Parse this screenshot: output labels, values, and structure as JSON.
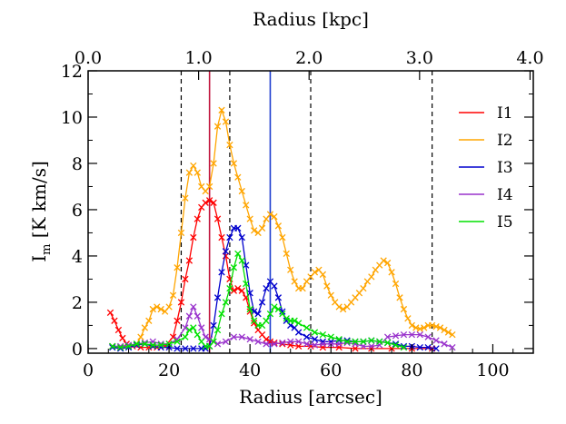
{
  "chart_data": {
    "type": "line",
    "xlabel": "Radius [arcsec]",
    "ylabel": "I",
    "ylabel_sub": "m",
    "ylabel_units": " [K km/s]",
    "top_axis_label": "Radius [kpc]",
    "xlim": [
      0,
      110
    ],
    "ylim": [
      -0.2,
      12
    ],
    "x_ticks": [
      0,
      20,
      40,
      60,
      80,
      100
    ],
    "y_ticks": [
      0,
      2,
      4,
      6,
      8,
      10,
      12
    ],
    "top_ticks": [
      {
        "label": "0.0",
        "x": 0
      },
      {
        "label": "1.0",
        "x": 27.3
      },
      {
        "label": "2.0",
        "x": 54.6
      },
      {
        "label": "3.0",
        "x": 81.9
      },
      {
        "label": "4.0",
        "x": 109.2
      }
    ],
    "dashed_lines_x": [
      23,
      35,
      55,
      85
    ],
    "solid_vlines": [
      {
        "x": 30,
        "color": "#c0143c"
      },
      {
        "x": 45,
        "color": "#1f3fd0"
      }
    ],
    "grid": false,
    "legend_position": "top-right",
    "series": [
      {
        "name": "I1",
        "color": "#ff0000",
        "points": [
          [
            5.5,
            1.55
          ],
          [
            6.5,
            1.2
          ],
          [
            7.5,
            0.8
          ],
          [
            8.5,
            0.45
          ],
          [
            9.5,
            0.2
          ],
          [
            11,
            0.1
          ],
          [
            13,
            0.05
          ],
          [
            15,
            0.05
          ],
          [
            17,
            0.05
          ],
          [
            19,
            0.1
          ],
          [
            21,
            0.5
          ],
          [
            22,
            1.2
          ],
          [
            23,
            2.0
          ],
          [
            24,
            3.0
          ],
          [
            25,
            3.8
          ],
          [
            26,
            4.8
          ],
          [
            27,
            5.6
          ],
          [
            28,
            6.1
          ],
          [
            29,
            6.3
          ],
          [
            30,
            6.4
          ],
          [
            31,
            6.3
          ],
          [
            32,
            5.6
          ],
          [
            33,
            4.8
          ],
          [
            34,
            4.0
          ],
          [
            35,
            3.0
          ],
          [
            36,
            2.5
          ],
          [
            37,
            2.6
          ],
          [
            38,
            2.5
          ],
          [
            39,
            2.2
          ],
          [
            40,
            1.6
          ],
          [
            41,
            1.1
          ],
          [
            42,
            0.8
          ],
          [
            43,
            0.6
          ],
          [
            44,
            0.4
          ],
          [
            45,
            0.3
          ],
          [
            46,
            0.25
          ],
          [
            48,
            0.2
          ],
          [
            50,
            0.15
          ],
          [
            52,
            0.1
          ],
          [
            55,
            0.1
          ],
          [
            58,
            0.05
          ],
          [
            62,
            0.05
          ],
          [
            66,
            0.0
          ],
          [
            70,
            0.0
          ],
          [
            75,
            0.0
          ],
          [
            80,
            0.0
          ],
          [
            85,
            0.0
          ]
        ]
      },
      {
        "name": "I2",
        "color": "#ffa500",
        "points": [
          [
            6,
            0.1
          ],
          [
            8,
            0.05
          ],
          [
            10,
            0.1
          ],
          [
            12,
            0.2
          ],
          [
            13,
            0.5
          ],
          [
            14,
            0.9
          ],
          [
            15,
            1.2
          ],
          [
            16,
            1.7
          ],
          [
            17,
            1.8
          ],
          [
            18,
            1.7
          ],
          [
            19,
            1.6
          ],
          [
            20,
            1.8
          ],
          [
            21,
            2.3
          ],
          [
            22,
            3.5
          ],
          [
            23,
            5.0
          ],
          [
            24,
            6.5
          ],
          [
            25,
            7.6
          ],
          [
            26,
            7.9
          ],
          [
            27,
            7.6
          ],
          [
            28,
            7.0
          ],
          [
            29,
            6.8
          ],
          [
            30,
            7.0
          ],
          [
            31,
            8.0
          ],
          [
            32,
            9.6
          ],
          [
            33,
            10.3
          ],
          [
            34,
            9.8
          ],
          [
            35,
            8.8
          ],
          [
            36,
            8.0
          ],
          [
            37,
            7.4
          ],
          [
            38,
            6.8
          ],
          [
            39,
            6.2
          ],
          [
            40,
            5.6
          ],
          [
            41,
            5.1
          ],
          [
            42,
            5.0
          ],
          [
            43,
            5.2
          ],
          [
            44,
            5.6
          ],
          [
            45,
            5.8
          ],
          [
            46,
            5.7
          ],
          [
            47,
            5.3
          ],
          [
            48,
            4.8
          ],
          [
            49,
            4.1
          ],
          [
            50,
            3.4
          ],
          [
            51,
            2.9
          ],
          [
            52,
            2.6
          ],
          [
            53,
            2.6
          ],
          [
            54,
            2.9
          ],
          [
            55,
            3.1
          ],
          [
            56,
            3.3
          ],
          [
            57,
            3.4
          ],
          [
            58,
            3.2
          ],
          [
            59,
            2.7
          ],
          [
            60,
            2.3
          ],
          [
            61,
            2.0
          ],
          [
            62,
            1.8
          ],
          [
            63,
            1.7
          ],
          [
            64,
            1.8
          ],
          [
            65,
            2.0
          ],
          [
            66,
            2.2
          ],
          [
            67,
            2.4
          ],
          [
            68,
            2.6
          ],
          [
            69,
            2.9
          ],
          [
            70,
            3.1
          ],
          [
            71,
            3.4
          ],
          [
            72,
            3.6
          ],
          [
            73,
            3.8
          ],
          [
            74,
            3.7
          ],
          [
            75,
            3.3
          ],
          [
            76,
            2.8
          ],
          [
            77,
            2.2
          ],
          [
            78,
            1.7
          ],
          [
            79,
            1.3
          ],
          [
            80,
            1.0
          ],
          [
            81,
            0.9
          ],
          [
            82,
            0.85
          ],
          [
            83,
            0.9
          ],
          [
            84,
            1.0
          ],
          [
            85,
            1.0
          ],
          [
            86,
            0.95
          ],
          [
            87,
            0.9
          ],
          [
            88,
            0.8
          ],
          [
            89,
            0.7
          ],
          [
            90,
            0.6
          ]
        ]
      },
      {
        "name": "I3",
        "color": "#0000cd",
        "points": [
          [
            6,
            0.05
          ],
          [
            8,
            0.0
          ],
          [
            10,
            0.05
          ],
          [
            12,
            0.15
          ],
          [
            14,
            0.2
          ],
          [
            16,
            0.1
          ],
          [
            18,
            0.05
          ],
          [
            20,
            0.05
          ],
          [
            22,
            0.0
          ],
          [
            24,
            0.0
          ],
          [
            26,
            0.0
          ],
          [
            28,
            0.0
          ],
          [
            29,
            0.0
          ],
          [
            30,
            0.1
          ],
          [
            31,
            1.0
          ],
          [
            32,
            2.2
          ],
          [
            33,
            3.3
          ],
          [
            34,
            4.2
          ],
          [
            35,
            4.8
          ],
          [
            36,
            5.2
          ],
          [
            37,
            5.2
          ],
          [
            38,
            4.8
          ],
          [
            39,
            3.6
          ],
          [
            40,
            2.4
          ],
          [
            41,
            1.6
          ],
          [
            42,
            1.5
          ],
          [
            43,
            2.0
          ],
          [
            44,
            2.6
          ],
          [
            45,
            2.9
          ],
          [
            46,
            2.7
          ],
          [
            47,
            2.2
          ],
          [
            48,
            1.6
          ],
          [
            49,
            1.2
          ],
          [
            50,
            1.0
          ],
          [
            51,
            0.9
          ],
          [
            52,
            0.7
          ],
          [
            54,
            0.5
          ],
          [
            56,
            0.4
          ],
          [
            58,
            0.3
          ],
          [
            60,
            0.3
          ],
          [
            62,
            0.35
          ],
          [
            64,
            0.35
          ],
          [
            66,
            0.3
          ],
          [
            68,
            0.3
          ],
          [
            70,
            0.35
          ],
          [
            72,
            0.3
          ],
          [
            74,
            0.25
          ],
          [
            76,
            0.2
          ],
          [
            78,
            0.1
          ],
          [
            80,
            0.1
          ],
          [
            82,
            0.05
          ],
          [
            84,
            0.05
          ],
          [
            86,
            0.0
          ]
        ]
      },
      {
        "name": "I4",
        "color": "#9932cc",
        "points": [
          [
            6,
            0.1
          ],
          [
            8,
            0.1
          ],
          [
            10,
            0.15
          ],
          [
            12,
            0.2
          ],
          [
            14,
            0.25
          ],
          [
            16,
            0.3
          ],
          [
            18,
            0.2
          ],
          [
            20,
            0.2
          ],
          [
            22,
            0.4
          ],
          [
            24,
            0.9
          ],
          [
            25,
            1.4
          ],
          [
            26,
            1.8
          ],
          [
            27,
            1.4
          ],
          [
            28,
            0.9
          ],
          [
            29,
            0.5
          ],
          [
            30,
            0.4
          ],
          [
            32,
            0.2
          ],
          [
            34,
            0.3
          ],
          [
            36,
            0.5
          ],
          [
            38,
            0.5
          ],
          [
            40,
            0.4
          ],
          [
            42,
            0.3
          ],
          [
            44,
            0.2
          ],
          [
            46,
            0.2
          ],
          [
            48,
            0.25
          ],
          [
            50,
            0.3
          ],
          [
            52,
            0.3
          ],
          [
            54,
            0.2
          ],
          [
            56,
            0.15
          ],
          [
            58,
            0.2
          ],
          [
            60,
            0.2
          ],
          [
            62,
            0.2
          ],
          [
            64,
            0.25
          ],
          [
            66,
            0.2
          ],
          [
            68,
            0.1
          ],
          [
            70,
            0.1
          ],
          [
            72,
            0.15
          ],
          [
            74,
            0.5
          ],
          [
            76,
            0.55
          ],
          [
            78,
            0.6
          ],
          [
            80,
            0.6
          ],
          [
            82,
            0.6
          ],
          [
            84,
            0.5
          ],
          [
            86,
            0.35
          ],
          [
            88,
            0.2
          ],
          [
            90,
            0.05
          ]
        ]
      },
      {
        "name": "I5",
        "color": "#00e000",
        "points": [
          [
            6,
            0.1
          ],
          [
            8,
            0.05
          ],
          [
            10,
            0.1
          ],
          [
            12,
            0.2
          ],
          [
            14,
            0.2
          ],
          [
            16,
            0.15
          ],
          [
            18,
            0.15
          ],
          [
            20,
            0.2
          ],
          [
            22,
            0.3
          ],
          [
            24,
            0.5
          ],
          [
            25,
            0.8
          ],
          [
            26,
            0.9
          ],
          [
            27,
            0.6
          ],
          [
            28,
            0.3
          ],
          [
            29,
            0.1
          ],
          [
            30,
            0.1
          ],
          [
            31,
            0.3
          ],
          [
            32,
            0.8
          ],
          [
            33,
            1.5
          ],
          [
            34,
            2.0
          ],
          [
            35,
            2.6
          ],
          [
            36,
            3.5
          ],
          [
            37,
            4.1
          ],
          [
            38,
            3.8
          ],
          [
            39,
            2.8
          ],
          [
            40,
            1.7
          ],
          [
            41,
            1.2
          ],
          [
            42,
            1.0
          ],
          [
            43,
            1.0
          ],
          [
            44,
            1.2
          ],
          [
            45,
            1.5
          ],
          [
            46,
            1.8
          ],
          [
            47,
            1.7
          ],
          [
            48,
            1.5
          ],
          [
            49,
            1.3
          ],
          [
            50,
            1.2
          ],
          [
            51,
            1.2
          ],
          [
            52,
            1.1
          ],
          [
            54,
            0.9
          ],
          [
            56,
            0.7
          ],
          [
            58,
            0.6
          ],
          [
            60,
            0.5
          ],
          [
            62,
            0.4
          ],
          [
            64,
            0.3
          ],
          [
            66,
            0.3
          ],
          [
            68,
            0.3
          ],
          [
            70,
            0.35
          ],
          [
            72,
            0.3
          ],
          [
            74,
            0.25
          ],
          [
            76,
            0.15
          ],
          [
            78,
            0.05
          ]
        ]
      }
    ]
  }
}
